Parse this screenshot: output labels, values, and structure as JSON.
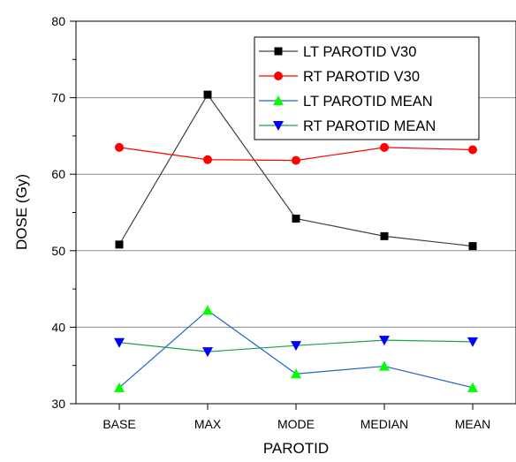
{
  "chart_data": {
    "type": "line",
    "categories": [
      "BASE",
      "MAX",
      "MODE",
      "MEDIAN",
      "MEAN"
    ],
    "xlabel": "PAROTID",
    "ylabel": "DOSE (Gy)",
    "ylim": [
      30,
      80
    ],
    "yticks": [
      "30",
      "40",
      "50",
      "60",
      "70",
      "80"
    ],
    "grid": "horizontal",
    "legend_position": "top-right",
    "series": [
      {
        "name": "LT PAROTID V30",
        "values": [
          50.8,
          70.4,
          54.2,
          51.9,
          50.6
        ],
        "color": "#000000",
        "line_color": "#404040",
        "marker": "square"
      },
      {
        "name": "RT PAROTID V30",
        "values": [
          63.5,
          61.9,
          61.8,
          63.5,
          63.2
        ],
        "color": "#ff0000",
        "line_color": "#ff0000",
        "marker": "circle"
      },
      {
        "name": "LT PAROTID MEAN",
        "values": [
          32.1,
          42.2,
          33.9,
          34.9,
          32.1
        ],
        "color": "#00ff00",
        "line_color": "#1e64c8",
        "marker": "triangle-up"
      },
      {
        "name": "RT PAROTID MEAN",
        "values": [
          38.0,
          36.8,
          37.6,
          38.3,
          38.1
        ],
        "color": "#0000ff",
        "line_color": "#20a050",
        "marker": "triangle-down"
      }
    ]
  }
}
